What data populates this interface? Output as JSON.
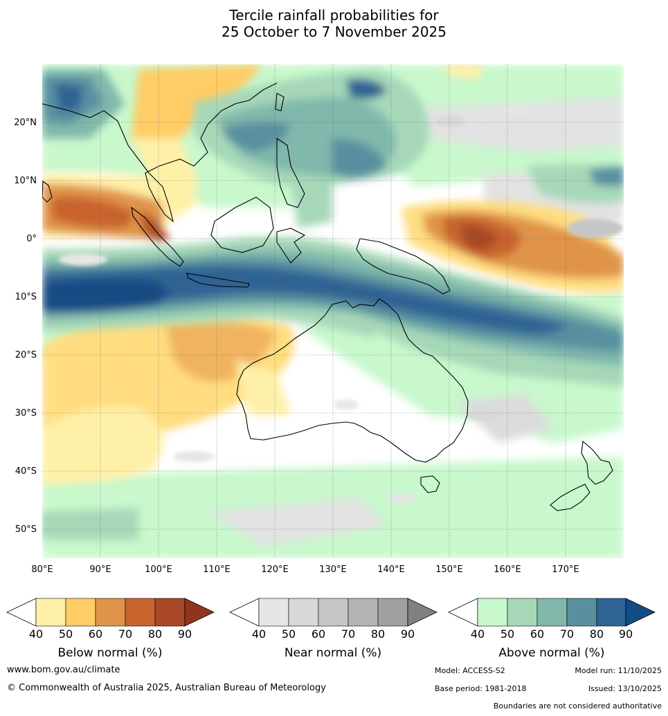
{
  "title": {
    "line1": "Tercile rainfall probabilities for",
    "line2": "25 October to 7 November 2025"
  },
  "map": {
    "lon_labels": [
      "80°E",
      "90°E",
      "100°E",
      "110°E",
      "120°E",
      "130°E",
      "140°E",
      "150°E",
      "160°E",
      "170°E"
    ],
    "lat_labels": [
      "20°N",
      "10°N",
      "0°",
      "10°S",
      "20°S",
      "30°S",
      "40°S",
      "50°S"
    ]
  },
  "colorbars": {
    "below": {
      "title": "Below normal (%)",
      "ticks": [
        "40",
        "50",
        "60",
        "70",
        "80",
        "90"
      ],
      "colors": [
        "#fff0a8",
        "#ffcc66",
        "#e0944a",
        "#c8642e",
        "#a84826",
        "#90341e"
      ]
    },
    "near": {
      "title": "Near normal (%)",
      "ticks": [
        "40",
        "50",
        "60",
        "70",
        "80",
        "90"
      ],
      "colors": [
        "#e6e6e6",
        "#d8d8d8",
        "#c6c6c6",
        "#b4b4b4",
        "#a0a0a0",
        "#808080"
      ]
    },
    "above": {
      "title": "Above normal (%)",
      "ticks": [
        "40",
        "50",
        "60",
        "70",
        "80",
        "90"
      ],
      "colors": [
        "#c8f8cc",
        "#a6d8b8",
        "#80b8ac",
        "#5890a0",
        "#2e6494",
        "#124c84"
      ]
    }
  },
  "footer": {
    "url": "www.bom.gov.au/climate",
    "copyright": "© Commonwealth of Australia 2025, Australian Bureau of Meteorology",
    "model": "Model: ACCESS-S2",
    "model_run": "Model run: 11/10/2025",
    "base_period": "Base period: 1981-2018",
    "issued": "Issued: 13/10/2025",
    "disclaimer": "Boundaries are not considered authoritative"
  }
}
